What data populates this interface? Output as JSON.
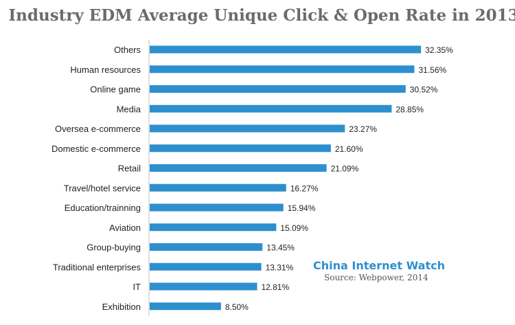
{
  "chart_data": {
    "type": "bar",
    "orientation": "horizontal",
    "title": "Industry EDM Average Unique Click & Open Rate in 2013",
    "categories": [
      "Others",
      "Human resources",
      "Online game",
      "Media",
      "Oversea e-commerce",
      "Domestic e-commerce",
      "Retail",
      "Travel/hotel service",
      "Education/trainning",
      "Aviation",
      "Group-buying",
      "Traditional enterprises",
      "IT",
      "Exhibition"
    ],
    "values": [
      32.35,
      31.56,
      30.52,
      28.85,
      23.27,
      21.6,
      21.09,
      16.27,
      15.94,
      15.09,
      13.45,
      13.31,
      12.81,
      8.5
    ],
    "value_labels": [
      "32.35%",
      "31.56%",
      "30.52%",
      "28.85%",
      "23.27%",
      "21.60%",
      "21.09%",
      "16.27%",
      "15.94%",
      "15.09%",
      "13.45%",
      "13.31%",
      "12.81%",
      "8.50%"
    ],
    "xlim": [
      0,
      35
    ],
    "grid": false,
    "bar_color": "#2e8fce"
  },
  "watermark": {
    "brand": "China Internet  Watch",
    "brand_color": "#2e8fce",
    "source": "Source: Webpower, 2014"
  }
}
